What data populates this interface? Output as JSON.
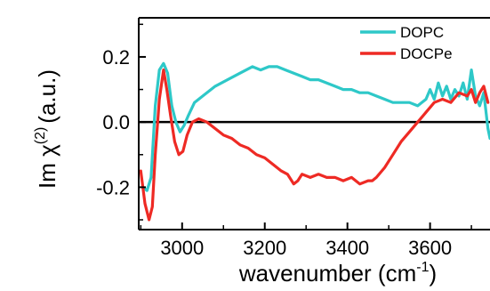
{
  "chart_data": {
    "type": "line",
    "xlabel": "wavenumber (cm",
    "xlabel_sup": "-1",
    "xlabel_close": ")",
    "ylabel": "Im χ",
    "ylabel_sup": "(2)",
    "ylabel_unit": "(a.u.)",
    "xlim": [
      2895,
      3745
    ],
    "ylim": [
      -0.33,
      0.32
    ],
    "x_ticks": [
      3000,
      3200,
      3400,
      3600
    ],
    "x_tick_labels": [
      "3000",
      "3200",
      "3400",
      "3600"
    ],
    "y_ticks": [
      0.2,
      0.0,
      -0.2
    ],
    "y_tick_labels": [
      "0.2",
      "0.0",
      "-0.2"
    ],
    "zero_line": true,
    "grid": false,
    "legend_position": "top-right",
    "series": [
      {
        "name": "DOPC",
        "color": "#2ec8c8",
        "x": [
          2905,
          2915,
          2925,
          2935,
          2945,
          2955,
          2965,
          2975,
          2985,
          2995,
          3005,
          3015,
          3030,
          3050,
          3080,
          3110,
          3140,
          3170,
          3190,
          3210,
          3230,
          3250,
          3270,
          3290,
          3310,
          3330,
          3350,
          3370,
          3390,
          3410,
          3430,
          3450,
          3470,
          3490,
          3510,
          3530,
          3550,
          3570,
          3590,
          3600,
          3610,
          3620,
          3630,
          3640,
          3650,
          3660,
          3670,
          3680,
          3690,
          3700,
          3710,
          3720,
          3730,
          3740,
          3745
        ],
        "y": [
          -0.2,
          -0.21,
          -0.17,
          0.05,
          0.16,
          0.18,
          0.15,
          0.05,
          0.0,
          -0.03,
          -0.01,
          0.02,
          0.06,
          0.08,
          0.11,
          0.13,
          0.15,
          0.17,
          0.16,
          0.17,
          0.17,
          0.16,
          0.15,
          0.14,
          0.13,
          0.13,
          0.12,
          0.11,
          0.1,
          0.1,
          0.09,
          0.09,
          0.08,
          0.07,
          0.06,
          0.06,
          0.06,
          0.05,
          0.07,
          0.1,
          0.07,
          0.12,
          0.08,
          0.11,
          0.07,
          0.1,
          0.08,
          0.12,
          0.07,
          0.16,
          0.08,
          0.05,
          0.09,
          -0.02,
          -0.05
        ]
      },
      {
        "name": "DOCPe",
        "color": "#ee2a24",
        "x": [
          2900,
          2910,
          2920,
          2928,
          2935,
          2945,
          2955,
          2963,
          2972,
          2982,
          2992,
          3002,
          3012,
          3025,
          3040,
          3060,
          3080,
          3100,
          3120,
          3140,
          3160,
          3180,
          3200,
          3220,
          3240,
          3255,
          3270,
          3280,
          3290,
          3310,
          3330,
          3350,
          3370,
          3390,
          3410,
          3430,
          3450,
          3460,
          3470,
          3490,
          3510,
          3530,
          3550,
          3570,
          3590,
          3610,
          3630,
          3650,
          3670,
          3690,
          3700,
          3710,
          3720,
          3730,
          3740
        ],
        "y": [
          -0.15,
          -0.25,
          -0.3,
          -0.26,
          -0.1,
          0.07,
          0.16,
          0.1,
          0.02,
          -0.06,
          -0.1,
          -0.09,
          -0.04,
          0.0,
          0.01,
          0.0,
          -0.02,
          -0.04,
          -0.05,
          -0.07,
          -0.08,
          -0.1,
          -0.11,
          -0.13,
          -0.15,
          -0.16,
          -0.19,
          -0.18,
          -0.16,
          -0.17,
          -0.16,
          -0.17,
          -0.17,
          -0.18,
          -0.17,
          -0.19,
          -0.18,
          -0.18,
          -0.17,
          -0.14,
          -0.1,
          -0.06,
          -0.03,
          0.0,
          0.03,
          0.06,
          0.07,
          0.06,
          0.09,
          0.08,
          0.1,
          0.06,
          0.09,
          0.11,
          0.06
        ]
      }
    ]
  }
}
